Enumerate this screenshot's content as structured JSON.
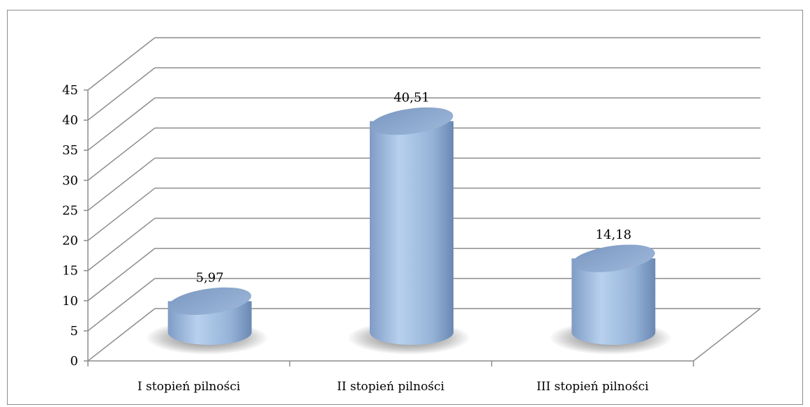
{
  "chart_data": {
    "type": "bar",
    "style": "3d-cylinder",
    "categories": [
      "I stopień pilności",
      "II stopień pilności",
      "III stopień pilności"
    ],
    "values": [
      5.97,
      40.51,
      14.18
    ],
    "data_labels": [
      "5,97",
      "40,51",
      "14,18"
    ],
    "yticks": [
      "0",
      "5",
      "10",
      "15",
      "20",
      "25",
      "30",
      "35",
      "40",
      "45"
    ],
    "ylim": [
      0,
      45
    ],
    "grid": true,
    "legend": "none",
    "colors": {
      "bar_light": "#b8d0ee",
      "bar_mid": "#95b3d7",
      "bar_dark": "#6a88b2",
      "grid": "#8c8c8c"
    }
  }
}
